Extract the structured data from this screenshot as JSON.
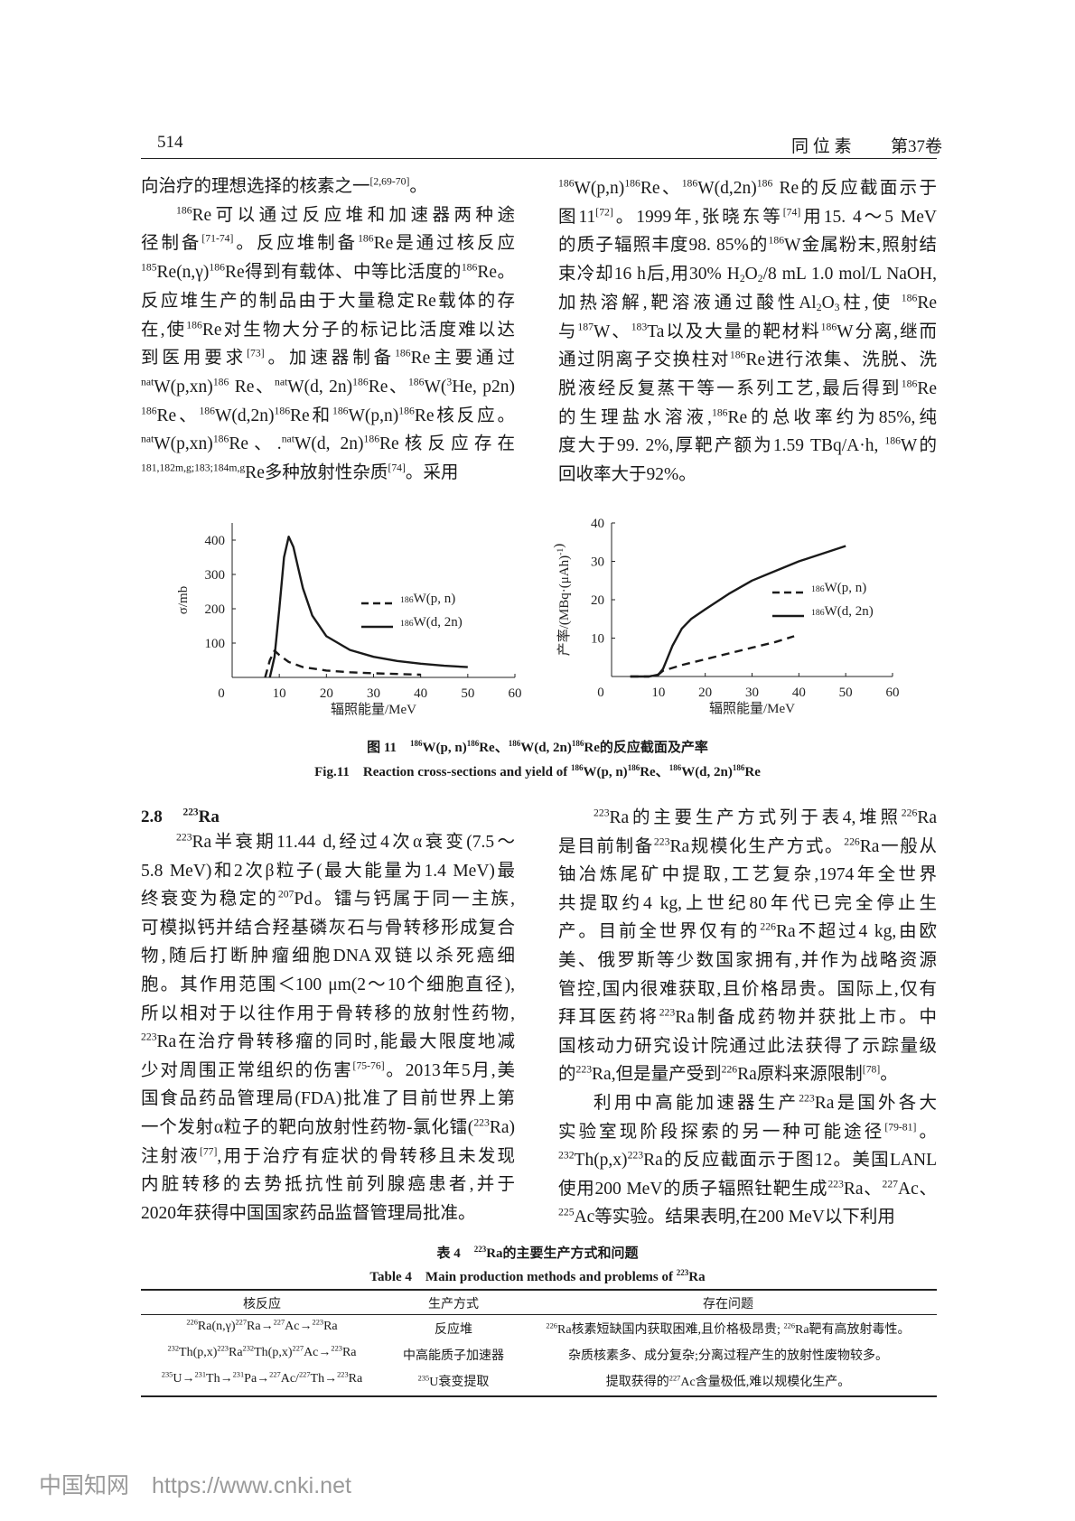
{
  "header": {
    "page_number": "514",
    "journal": "同 位 素",
    "volume": "第37卷"
  },
  "top_left": [
    [
      "向治疗的理想选择的核素之一^{[2,69-70]}。"
    ],
    [
      "^{186}Re可以通过反应堆和加速器两种途",
      "径制备^{[71-74]}。反应堆制备^{186}Re是通过核反应",
      "^{185}Re(n,γ)^{186}Re得到有载体、中等比活度的^{186}Re。",
      "反应堆生产的制品由于大量稳定Re载体的存",
      "在,使^{186}Re对生物大分子的标记比活度难以达",
      "到医用要求^{[73]}。加速器制备^{186}Re主要通过",
      "^{nat}W(p,xn)^{186} Re、^{nat}W(d, 2n)^{186}Re、^{186}W(^{3}He, p2n)",
      "^{186}Re、^{186}W(d,2n)^{186}Re和^{186}W(p,n)^{186}Re核反应。",
      "^{nat}W(p,xn)^{186}Re、.^{nat}W(d, 2n)^{186}Re核反应存在",
      "^{181,182m,g;183;184m,g}Re多种放射性杂质^{[74]}。采用"
    ]
  ],
  "top_right": [
    [
      "^{186}W(p,n)^{186}Re、^{186}W(d,2n)^{186} Re的反应截面示于",
      "图11^{[72]}。1999年,张晓东等^{[74]}用15. 4～5 MeV",
      "的质子辐照丰度98. 85%的^{186}W金属粉末,照射结",
      "束冷却16 h后,用30% H_{2}O_{2}/8 mL 1.0 mol/L NaOH,",
      "加热溶解,靶溶液通过酸性Al_{2}O_{3}柱,使 ^{186}Re",
      "与^{187}W、^{183}Ta以及大量的靶材料^{186}W分离,继而",
      "通过阴离子交换柱对^{186}Re进行浓集、洗脱、洗",
      "脱液经反复蒸干等一系列工艺,最后得到^{186}Re",
      "的生理盐水溶液,^{186}Re的总收率约为85%,纯",
      "度大于99. 2%,厚靶产额为1.59 TBq/A·h, ^{186}W的",
      "回收率大于92%。"
    ]
  ],
  "figure": {
    "caption_cn": "图 11　^{186}W(p, n)^{186}Re、^{186}W(d, 2n)^{186}Re的反应截面及产率",
    "caption_en": "Fig.11　Reaction cross-sections and yield of ^{186}W(p, n)^{186}Re、^{186}W(d, 2n)^{186}Re"
  },
  "chart_data": [
    {
      "type": "line",
      "xlabel": "辐照能量/MeV",
      "ylabel": "σ/mb",
      "xlim": [
        0,
        60
      ],
      "ylim": [
        0,
        450
      ],
      "xticks": [
        0,
        10,
        20,
        30,
        40,
        50,
        60
      ],
      "yticks": [
        100,
        200,
        300,
        400
      ],
      "grid": false,
      "legend": "center-right",
      "series": [
        {
          "name": "186W(p, n)",
          "legend_label": "^{186}W(p, n)",
          "style": "dashed",
          "x": [
            7,
            8,
            9,
            10,
            12,
            15,
            20,
            25,
            30,
            35,
            40
          ],
          "y": [
            0,
            50,
            78,
            65,
            45,
            30,
            20,
            15,
            12,
            10,
            8
          ]
        },
        {
          "name": "186W(d, 2n)",
          "legend_label": "^{186}W(d, 2n)",
          "style": "solid",
          "x": [
            8,
            9,
            10,
            11,
            12,
            13,
            14,
            15,
            17,
            20,
            25,
            30,
            35,
            40,
            45,
            50
          ],
          "y": [
            0,
            60,
            200,
            350,
            410,
            380,
            320,
            260,
            180,
            120,
            80,
            60,
            48,
            40,
            34,
            30
          ]
        }
      ]
    },
    {
      "type": "line",
      "xlabel": "辐照能量/MeV",
      "ylabel": "产率/(MBq·(μAh)^{-1})",
      "xlim": [
        0,
        60
      ],
      "ylim": [
        0,
        40
      ],
      "xticks": [
        0,
        10,
        20,
        30,
        40,
        50,
        60
      ],
      "yticks": [
        10,
        20,
        30,
        40
      ],
      "grid": false,
      "legend": "center-right",
      "series": [
        {
          "name": "186W(p, n)",
          "legend_label": "^{186}W(p, n)",
          "style": "dashed",
          "x": [
            4,
            8,
            10,
            11,
            15,
            20,
            25,
            30,
            35,
            39
          ],
          "y": [
            0,
            0,
            0.5,
            1.5,
            3,
            4.5,
            6,
            7.5,
            9,
            10.5
          ]
        },
        {
          "name": "186W(d, 2n)",
          "legend_label": "^{186}W(d, 2n)",
          "style": "solid",
          "x": [
            4,
            8,
            10,
            11,
            12,
            13,
            15,
            17,
            20,
            25,
            30,
            35,
            40,
            45,
            50
          ],
          "y": [
            0,
            0,
            0.5,
            2,
            5,
            8,
            12.5,
            15,
            17.5,
            21.5,
            25,
            27.5,
            30,
            32,
            34
          ]
        }
      ]
    }
  ],
  "section": {
    "number": "2.8",
    "title": "^{223}Ra"
  },
  "bottom_left": [
    [
      "^{223}Ra半衰期11.44 d,经过4次α衰变(7.5～",
      "5.8 MeV)和2次β粒子(最大能量为1.4 MeV)最",
      "终衰变为稳定的^{207}Pd。镭与钙属于同一主族,",
      "可模拟钙并结合羟基磷灰石与骨转移形成复合",
      "物,随后打断肿瘤细胞DNA双链以杀死癌细",
      "胞。其作用范围＜100 μm(2～10个细胞直径),",
      "所以相对于以往作用于骨转移的放射性药物,",
      "^{223}Ra在治疗骨转移瘤的同时,能最大限度地减",
      "少对周围正常组织的伤害^{[75-76]}。2013年5月,美",
      "国食品药品管理局(FDA)批准了目前世界上第",
      "一个发射α粒子的靶向放射性药物-氯化镭(^{223}Ra)",
      "注射液^{[77]},用于治疗有症状的骨转移且未发现",
      "内脏转移的去势抵抗性前列腺癌患者,并于",
      "2020年获得中国国家药品监督管理局批准。"
    ]
  ],
  "bottom_right": [
    [
      "^{223}Ra的主要生产方式列于表4,堆照^{226}Ra",
      "是目前制备^{223}Ra规模化生产方式。^{226}Ra一般从",
      "铀冶炼尾矿中提取,工艺复杂,1974年全世界",
      "共提取约4 kg,上世纪80年代已完全停止生",
      "产。目前全世界仅有的^{226}Ra不超过4 kg,由欧",
      "美、俄罗斯等少数国家拥有,并作为战略资源",
      "管控,国内很难获取,且价格昂贵。国际上,仅有",
      "拜耳医药将^{223}Ra制备成药物并获批上市。中",
      "国核动力研究设计院通过此法获得了示踪量级",
      "的^{223}Ra,但是量产受到^{226}Ra原料来源限制^{[78]}。"
    ],
    [
      "利用中高能加速器生产^{223}Ra是国外各大",
      "实验室现阶段探索的另一种可能途径^{[79-81]}。",
      "^{232}Th(p,x)^{223}Ra的反应截面示于图12。美国LANL",
      "使用200 MeV的质子辐照钍靶生成^{223}Ra、^{227}Ac、",
      "^{225}Ac等实验。结果表明,在200 MeV以下利用"
    ]
  ],
  "table": {
    "caption_cn": "表 4　^{223}Ra的主要生产方式和问题",
    "caption_en": "Table 4　Main production methods and problems of ^{223}Ra",
    "headers": [
      "核反应",
      "生产方式",
      "存在问题"
    ],
    "rows": [
      [
        "^{226}Ra(n,γ)^{227}Ra→^{227}Ac→^{223}Ra",
        "反应堆",
        "^{226}Ra核素短缺国内获取困难,且价格极昂贵; ^{226}Ra靶有高放射毒性。"
      ],
      [
        "^{232}Th(p,x)^{223}Ra^{232}Th(p,x)^{227}Ac→^{223}Ra",
        "中高能质子加速器",
        "杂质核素多、成分复杂;分离过程产生的放射性废物较多。"
      ],
      [
        "^{235}U→^{231}Th→^{231}Pa→^{227}Ac/^{227}Th→^{223}Ra",
        "^{235}U衰变提取",
        "提取获得的^{227}Ac含量极低,难以规模化生产。"
      ]
    ]
  },
  "watermark": "中国知网　https://www.cnki.net"
}
